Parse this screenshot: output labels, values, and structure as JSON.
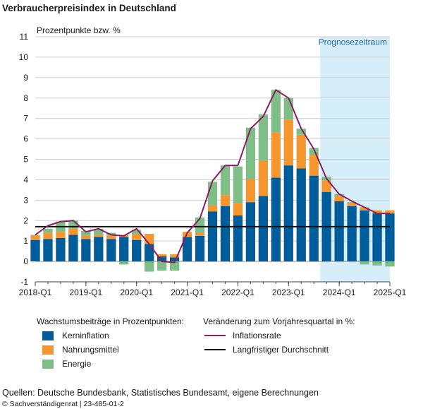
{
  "title": "Verbraucherpreisindex in Deutschland",
  "unit_label": "Prozentpunkte bzw. %",
  "legend": {
    "left_heading": "Wachstumsbeiträge in Prozentpunkten:",
    "right_heading": "Veränderung zum Vorjahresquartal in %:"
  },
  "sources": "Quellen: Deutsche Bundesbank, Statistisches Bundesamt, eigene Berechnungen",
  "copyright": "© Sachverständigenrat | 23-485-01-2",
  "colors": {
    "kern": "#005d9c",
    "nahrung": "#f7962d",
    "energie": "#7ebf88",
    "inflation": "#8c1d5f",
    "average": "#111111",
    "forecast_band": "#d6eef9",
    "forecast_text": "#1d6fa5"
  },
  "chart_data": {
    "type": "bar",
    "stacked": true,
    "categories": [
      "2018-Q1",
      "2018-Q2",
      "2018-Q3",
      "2018-Q4",
      "2019-Q1",
      "2019-Q2",
      "2019-Q3",
      "2019-Q4",
      "2020-Q1",
      "2020-Q2",
      "2020-Q3",
      "2020-Q4",
      "2021-Q1",
      "2021-Q2",
      "2021-Q3",
      "2021-Q4",
      "2022-Q1",
      "2022-Q2",
      "2022-Q3",
      "2022-Q4",
      "2023-Q1",
      "2023-Q2",
      "2023-Q3",
      "2023-Q4",
      "2024-Q1",
      "2024-Q2",
      "2024-Q3",
      "2024-Q4",
      "2025-Q1"
    ],
    "x_ticks": [
      "2018-Q1",
      "2019-Q1",
      "2020-Q1",
      "2021-Q1",
      "2022-Q1",
      "2023-Q1",
      "2024-Q1",
      "2025-Q1"
    ],
    "ylim": [
      -1,
      11
    ],
    "yticks": [
      -1,
      0,
      1,
      2,
      3,
      4,
      5,
      6,
      7,
      8,
      9,
      10,
      11
    ],
    "grid": true,
    "forecast_start": "2023-Q4",
    "forecast_label": "Prognosezeitraum",
    "series": [
      {
        "name": "Kerninflation",
        "kind": "bar",
        "values": [
          1.05,
          1.1,
          1.15,
          1.3,
          1.1,
          1.2,
          1.1,
          1.2,
          1.05,
          0.85,
          0.25,
          0.2,
          1.2,
          1.25,
          2.45,
          2.7,
          2.25,
          2.9,
          3.2,
          4.1,
          4.7,
          4.55,
          4.2,
          3.4,
          2.95,
          2.7,
          2.5,
          2.35,
          2.35
        ]
      },
      {
        "name": "Nahrungsmittel",
        "kind": "bar",
        "values": [
          0.2,
          0.3,
          0.3,
          0.3,
          0.15,
          0.1,
          0.15,
          0.1,
          0.3,
          0.5,
          0.1,
          0.15,
          0.25,
          0.15,
          0.3,
          0.55,
          0.6,
          1.15,
          1.75,
          2.2,
          2.25,
          1.65,
          1.0,
          0.55,
          0.25,
          0.15,
          0.15,
          0.15,
          0.15
        ]
      },
      {
        "name": "Energie",
        "kind": "bar",
        "values": [
          0.05,
          0.2,
          0.5,
          0.4,
          0.25,
          0.3,
          0.15,
          -0.15,
          0.2,
          -0.5,
          -0.45,
          -0.45,
          0.0,
          0.75,
          1.15,
          1.45,
          1.8,
          2.5,
          2.25,
          2.1,
          1.05,
          0.3,
          0.35,
          0.2,
          0.1,
          0.05,
          -0.15,
          -0.2,
          -0.25
        ]
      },
      {
        "name": "Inflationsrate",
        "kind": "line",
        "values": [
          1.3,
          1.75,
          1.95,
          2.0,
          1.45,
          1.6,
          1.3,
          1.25,
          1.6,
          0.85,
          0.0,
          -0.05,
          1.4,
          2.1,
          3.95,
          4.7,
          4.7,
          6.5,
          7.1,
          8.4,
          8.0,
          6.5,
          5.5,
          4.05,
          3.3,
          2.95,
          2.65,
          2.35,
          2.35
        ]
      },
      {
        "name": "Langfristiger Durchschnitt",
        "kind": "line",
        "values": [
          1.7,
          1.7,
          1.7,
          1.7,
          1.7,
          1.7,
          1.7,
          1.7,
          1.7,
          1.7,
          1.7,
          1.7,
          1.7,
          1.7,
          1.7,
          1.7,
          1.7,
          1.7,
          1.7,
          1.7,
          1.7,
          1.7,
          1.7,
          1.7,
          1.7,
          1.7,
          1.7,
          1.7,
          1.7
        ]
      }
    ],
    "legend_position": "bottom"
  }
}
